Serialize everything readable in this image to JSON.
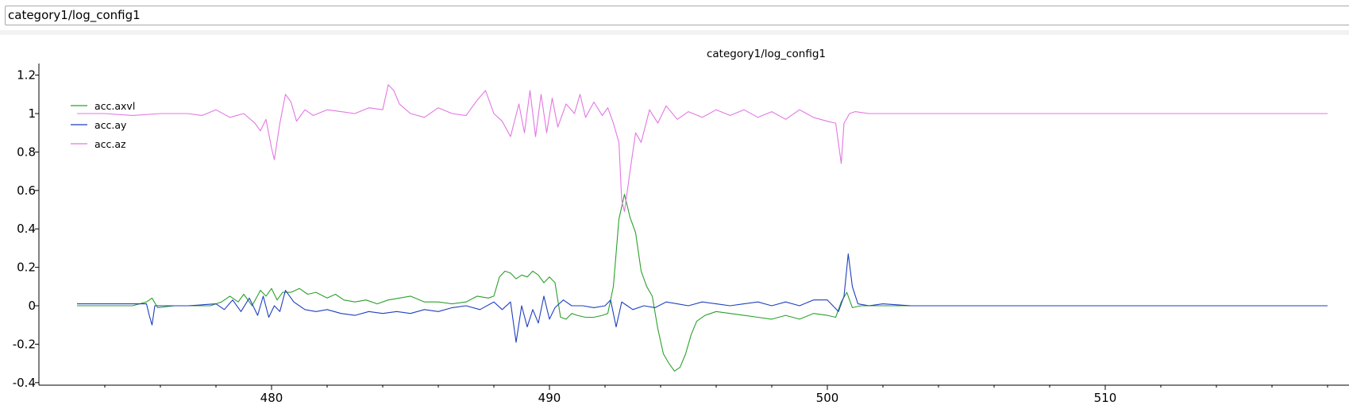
{
  "window": {
    "title": "category1/log_config1"
  },
  "colors": {
    "axvl": "#2ca02c",
    "ay": "#1f3fbf",
    "az": "#e377e3"
  },
  "chart_data": {
    "type": "line",
    "title": "category1/log_config1",
    "xlabel": "",
    "ylabel": "",
    "xlim": [
      472.4,
      518.2
    ],
    "ylim": [
      -0.4,
      1.25
    ],
    "xticks": [
      480,
      490,
      500,
      510
    ],
    "yticks": [
      -0.4,
      -0.2,
      0,
      0.2,
      0.4,
      0.6,
      0.8,
      1,
      1.2
    ],
    "ytick_labels": [
      "-0.4",
      "-0.2",
      "0",
      "0.2",
      "0.4",
      "0.6",
      "0.8",
      "1",
      "1.2"
    ],
    "legend": "top-left",
    "grid": false,
    "series": [
      {
        "name": "acc.axvl",
        "color": "#2ca02c",
        "points": [
          [
            473,
            0.0
          ],
          [
            474,
            0.0
          ],
          [
            475,
            0.0
          ],
          [
            475.5,
            0.02
          ],
          [
            475.7,
            0.04
          ],
          [
            475.9,
            -0.01
          ],
          [
            476.5,
            0.0
          ],
          [
            477,
            0.0
          ],
          [
            477.8,
            0.0
          ],
          [
            478.2,
            0.02
          ],
          [
            478.5,
            0.05
          ],
          [
            478.8,
            0.02
          ],
          [
            479,
            0.06
          ],
          [
            479.3,
            0.0
          ],
          [
            479.6,
            0.08
          ],
          [
            479.8,
            0.05
          ],
          [
            480,
            0.09
          ],
          [
            480.2,
            0.03
          ],
          [
            480.4,
            0.07
          ],
          [
            480.7,
            0.07
          ],
          [
            481,
            0.09
          ],
          [
            481.3,
            0.06
          ],
          [
            481.6,
            0.07
          ],
          [
            482,
            0.04
          ],
          [
            482.3,
            0.06
          ],
          [
            482.6,
            0.03
          ],
          [
            483,
            0.02
          ],
          [
            483.4,
            0.03
          ],
          [
            483.8,
            0.01
          ],
          [
            484.2,
            0.03
          ],
          [
            484.6,
            0.04
          ],
          [
            485,
            0.05
          ],
          [
            485.5,
            0.02
          ],
          [
            486,
            0.02
          ],
          [
            486.5,
            0.01
          ],
          [
            487,
            0.02
          ],
          [
            487.4,
            0.05
          ],
          [
            487.8,
            0.04
          ],
          [
            488,
            0.05
          ],
          [
            488.2,
            0.15
          ],
          [
            488.4,
            0.18
          ],
          [
            488.6,
            0.17
          ],
          [
            488.8,
            0.14
          ],
          [
            489,
            0.16
          ],
          [
            489.2,
            0.15
          ],
          [
            489.4,
            0.18
          ],
          [
            489.6,
            0.16
          ],
          [
            489.8,
            0.12
          ],
          [
            490,
            0.15
          ],
          [
            490.2,
            0.12
          ],
          [
            490.4,
            -0.06
          ],
          [
            490.6,
            -0.07
          ],
          [
            490.8,
            -0.04
          ],
          [
            491,
            -0.05
          ],
          [
            491.3,
            -0.06
          ],
          [
            491.6,
            -0.06
          ],
          [
            491.9,
            -0.05
          ],
          [
            492.1,
            -0.04
          ],
          [
            492.3,
            0.1
          ],
          [
            492.5,
            0.45
          ],
          [
            492.7,
            0.58
          ],
          [
            492.9,
            0.46
          ],
          [
            493.1,
            0.38
          ],
          [
            493.3,
            0.18
          ],
          [
            493.5,
            0.1
          ],
          [
            493.7,
            0.05
          ],
          [
            493.9,
            -0.12
          ],
          [
            494.1,
            -0.25
          ],
          [
            494.3,
            -0.3
          ],
          [
            494.5,
            -0.34
          ],
          [
            494.7,
            -0.32
          ],
          [
            494.9,
            -0.25
          ],
          [
            495.1,
            -0.15
          ],
          [
            495.3,
            -0.08
          ],
          [
            495.6,
            -0.05
          ],
          [
            496,
            -0.03
          ],
          [
            496.5,
            -0.04
          ],
          [
            497,
            -0.05
          ],
          [
            497.5,
            -0.06
          ],
          [
            498,
            -0.07
          ],
          [
            498.5,
            -0.05
          ],
          [
            499,
            -0.07
          ],
          [
            499.5,
            -0.04
          ],
          [
            500,
            -0.05
          ],
          [
            500.3,
            -0.06
          ],
          [
            500.5,
            0.02
          ],
          [
            500.7,
            0.07
          ],
          [
            500.9,
            -0.01
          ],
          [
            501.2,
            0.0
          ],
          [
            502,
            0.0
          ],
          [
            503,
            0.0
          ],
          [
            504,
            0.0
          ],
          [
            506,
            0.0
          ],
          [
            508,
            0.0
          ],
          [
            510,
            0.0
          ],
          [
            512,
            0.0
          ],
          [
            514,
            0.0
          ],
          [
            516,
            0.0
          ],
          [
            518,
            0.0
          ]
        ]
      },
      {
        "name": "acc.ay",
        "color": "#1f3fbf",
        "points": [
          [
            473,
            0.01
          ],
          [
            474,
            0.01
          ],
          [
            475,
            0.01
          ],
          [
            475.5,
            0.01
          ],
          [
            475.6,
            -0.05
          ],
          [
            475.7,
            -0.1
          ],
          [
            475.8,
            0.0
          ],
          [
            476.5,
            0.0
          ],
          [
            477,
            0.0
          ],
          [
            478,
            0.01
          ],
          [
            478.3,
            -0.02
          ],
          [
            478.6,
            0.03
          ],
          [
            478.9,
            -0.03
          ],
          [
            479.2,
            0.04
          ],
          [
            479.5,
            -0.05
          ],
          [
            479.7,
            0.05
          ],
          [
            479.9,
            -0.06
          ],
          [
            480.1,
            0.0
          ],
          [
            480.3,
            -0.03
          ],
          [
            480.5,
            0.08
          ],
          [
            480.8,
            0.02
          ],
          [
            481.2,
            -0.02
          ],
          [
            481.6,
            -0.03
          ],
          [
            482,
            -0.02
          ],
          [
            482.5,
            -0.04
          ],
          [
            483,
            -0.05
          ],
          [
            483.5,
            -0.03
          ],
          [
            484,
            -0.04
          ],
          [
            484.5,
            -0.03
          ],
          [
            485,
            -0.04
          ],
          [
            485.5,
            -0.02
          ],
          [
            486,
            -0.03
          ],
          [
            486.5,
            -0.01
          ],
          [
            487,
            0.0
          ],
          [
            487.5,
            -0.02
          ],
          [
            488,
            0.02
          ],
          [
            488.3,
            -0.02
          ],
          [
            488.6,
            0.02
          ],
          [
            488.8,
            -0.19
          ],
          [
            489,
            0.0
          ],
          [
            489.2,
            -0.11
          ],
          [
            489.4,
            -0.02
          ],
          [
            489.6,
            -0.09
          ],
          [
            489.8,
            0.05
          ],
          [
            490,
            -0.07
          ],
          [
            490.2,
            -0.01
          ],
          [
            490.5,
            0.03
          ],
          [
            490.8,
            0.0
          ],
          [
            491.2,
            0.0
          ],
          [
            491.6,
            -0.01
          ],
          [
            492,
            0.0
          ],
          [
            492.2,
            0.03
          ],
          [
            492.4,
            -0.11
          ],
          [
            492.6,
            0.02
          ],
          [
            492.8,
            0.0
          ],
          [
            493,
            -0.02
          ],
          [
            493.4,
            0.0
          ],
          [
            493.8,
            -0.01
          ],
          [
            494.2,
            0.02
          ],
          [
            494.6,
            0.01
          ],
          [
            495,
            0.0
          ],
          [
            495.5,
            0.02
          ],
          [
            496,
            0.01
          ],
          [
            496.5,
            0.0
          ],
          [
            497,
            0.01
          ],
          [
            497.5,
            0.02
          ],
          [
            498,
            0.0
          ],
          [
            498.5,
            0.02
          ],
          [
            499,
            0.0
          ],
          [
            499.5,
            0.03
          ],
          [
            500,
            0.03
          ],
          [
            500.4,
            -0.03
          ],
          [
            500.6,
            0.05
          ],
          [
            500.75,
            0.27
          ],
          [
            500.9,
            0.1
          ],
          [
            501.1,
            0.01
          ],
          [
            501.5,
            0.0
          ],
          [
            502,
            0.01
          ],
          [
            503,
            0.0
          ],
          [
            504,
            0.0
          ],
          [
            506,
            0.0
          ],
          [
            508,
            0.0
          ],
          [
            510,
            0.0
          ],
          [
            512,
            0.0
          ],
          [
            514,
            0.0
          ],
          [
            516,
            0.0
          ],
          [
            518,
            0.0
          ]
        ]
      },
      {
        "name": "acc.az",
        "color": "#e377e3",
        "points": [
          [
            473,
            1.0
          ],
          [
            474,
            1.0
          ],
          [
            475,
            0.99
          ],
          [
            476,
            1.0
          ],
          [
            477,
            1.0
          ],
          [
            477.5,
            0.99
          ],
          [
            478,
            1.02
          ],
          [
            478.5,
            0.98
          ],
          [
            479,
            1.0
          ],
          [
            479.4,
            0.95
          ],
          [
            479.6,
            0.91
          ],
          [
            479.8,
            0.97
          ],
          [
            480,
            0.82
          ],
          [
            480.1,
            0.76
          ],
          [
            480.3,
            0.95
          ],
          [
            480.5,
            1.1
          ],
          [
            480.7,
            1.06
          ],
          [
            480.9,
            0.96
          ],
          [
            481.2,
            1.02
          ],
          [
            481.5,
            0.99
          ],
          [
            482,
            1.02
          ],
          [
            482.5,
            1.01
          ],
          [
            483,
            1.0
          ],
          [
            483.5,
            1.03
          ],
          [
            484,
            1.02
          ],
          [
            484.2,
            1.15
          ],
          [
            484.4,
            1.12
          ],
          [
            484.6,
            1.05
          ],
          [
            485,
            1.0
          ],
          [
            485.5,
            0.98
          ],
          [
            486,
            1.03
          ],
          [
            486.5,
            1.0
          ],
          [
            487,
            0.99
          ],
          [
            487.4,
            1.07
          ],
          [
            487.7,
            1.12
          ],
          [
            488,
            1.0
          ],
          [
            488.3,
            0.96
          ],
          [
            488.6,
            0.88
          ],
          [
            488.9,
            1.05
          ],
          [
            489.1,
            0.9
          ],
          [
            489.3,
            1.12
          ],
          [
            489.5,
            0.88
          ],
          [
            489.7,
            1.1
          ],
          [
            489.9,
            0.9
          ],
          [
            490.1,
            1.08
          ],
          [
            490.3,
            0.93
          ],
          [
            490.6,
            1.05
          ],
          [
            490.9,
            1.0
          ],
          [
            491.1,
            1.1
          ],
          [
            491.3,
            0.98
          ],
          [
            491.6,
            1.06
          ],
          [
            491.9,
            0.99
          ],
          [
            492.1,
            1.03
          ],
          [
            492.3,
            0.95
          ],
          [
            492.5,
            0.85
          ],
          [
            492.6,
            0.55
          ],
          [
            492.7,
            0.49
          ],
          [
            492.9,
            0.7
          ],
          [
            493.1,
            0.9
          ],
          [
            493.3,
            0.85
          ],
          [
            493.6,
            1.02
          ],
          [
            493.9,
            0.95
          ],
          [
            494.2,
            1.04
          ],
          [
            494.6,
            0.97
          ],
          [
            495,
            1.01
          ],
          [
            495.5,
            0.98
          ],
          [
            496,
            1.02
          ],
          [
            496.5,
            0.99
          ],
          [
            497,
            1.02
          ],
          [
            497.5,
            0.98
          ],
          [
            498,
            1.01
          ],
          [
            498.5,
            0.97
          ],
          [
            499,
            1.02
          ],
          [
            499.5,
            0.98
          ],
          [
            500,
            0.96
          ],
          [
            500.3,
            0.95
          ],
          [
            500.5,
            0.74
          ],
          [
            500.6,
            0.95
          ],
          [
            500.8,
            1.0
          ],
          [
            501,
            1.01
          ],
          [
            501.5,
            1.0
          ],
          [
            502,
            1.0
          ],
          [
            503,
            1.0
          ],
          [
            505,
            1.0
          ],
          [
            507,
            1.0
          ],
          [
            509,
            1.0
          ],
          [
            511,
            1.0
          ],
          [
            513,
            1.0
          ],
          [
            515,
            1.0
          ],
          [
            517,
            1.0
          ],
          [
            518,
            1.0
          ]
        ]
      }
    ]
  }
}
